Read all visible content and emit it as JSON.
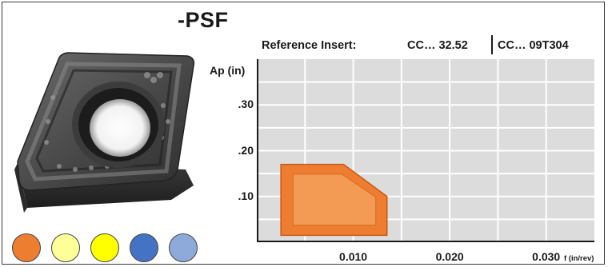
{
  "header": {
    "series_title": "-PSF",
    "reference_label": "Reference Insert:",
    "reference_a": "CC… 32.52",
    "reference_b": "CC… 09T304"
  },
  "insert_image": {
    "icon": "cutting-insert-image"
  },
  "grade_swatches": [
    {
      "color": "#ed7d31"
    },
    {
      "color": "#ffff99"
    },
    {
      "color": "#ffff00"
    },
    {
      "color": "#4472c4"
    },
    {
      "color": "#8eaadb"
    }
  ],
  "chart_data": {
    "type": "area",
    "xlabel": "f (in/rev)",
    "ylabel": "Ap (in)",
    "xlim": [
      0.0,
      0.035
    ],
    "ylim": [
      0.0,
      0.4
    ],
    "x_ticks": [
      "0.010",
      "0.020",
      "0.030"
    ],
    "y_ticks": [
      ".10",
      ".20",
      ".30"
    ],
    "grid": true,
    "series": [
      {
        "color": "#ed7d31",
        "polygon": [
          [
            0.0025,
            0.17
          ],
          [
            0.009,
            0.17
          ],
          [
            0.0135,
            0.1
          ],
          [
            0.0135,
            0.015
          ],
          [
            0.0025,
            0.015
          ]
        ]
      }
    ]
  }
}
